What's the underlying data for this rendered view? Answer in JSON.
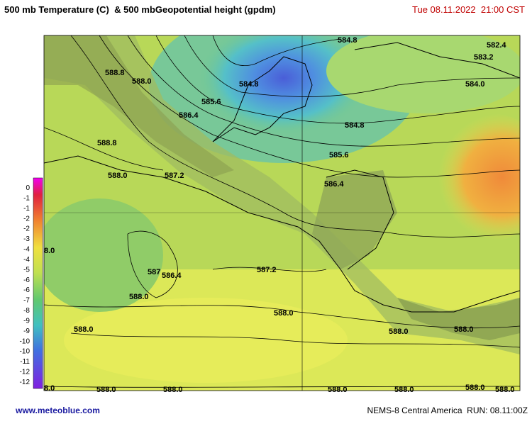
{
  "header": {
    "title": "500 mb Temperature (C)  & 500 mbGeopotential height (gpdm)",
    "time": "Tue 08.11.2022  21:00 CST"
  },
  "colorbar_labels": [
    0,
    -1,
    -1,
    -2,
    -2,
    -3,
    -4,
    -4,
    -5,
    -6,
    -6,
    -7,
    -8,
    -9,
    -9,
    -10,
    -10,
    -11,
    -12,
    -12
  ],
  "contour_labels": [
    "588.8",
    "588.0",
    "585.6",
    "586.4",
    "584.8",
    "584.8",
    "582.4",
    "583.2",
    "584.0",
    "584.8",
    "585.6",
    "586.4",
    "588.8",
    "588.0",
    "587.2",
    "8.0",
    "587.2",
    "587",
    "586.4",
    "588.0",
    "588.0",
    "588.0",
    "588.0",
    "588.0",
    "8.0",
    "588.0",
    "588.0",
    "588.0",
    "588.0",
    "588.0",
    "588.0"
  ],
  "footer": {
    "site": "www.meteoblue.com",
    "model": "NEMS-8 Central America  RUN: 08.11:00Z"
  }
}
